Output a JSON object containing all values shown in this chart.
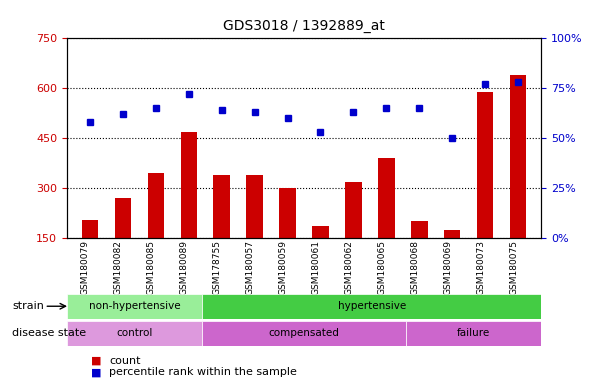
{
  "title": "GDS3018 / 1392889_at",
  "samples": [
    "GSM180079",
    "GSM180082",
    "GSM180085",
    "GSM180089",
    "GSM178755",
    "GSM180057",
    "GSM180059",
    "GSM180061",
    "GSM180062",
    "GSM180065",
    "GSM180068",
    "GSM180069",
    "GSM180073",
    "GSM180075"
  ],
  "counts": [
    205,
    270,
    345,
    470,
    340,
    340,
    300,
    185,
    320,
    390,
    200,
    175,
    590,
    640
  ],
  "percentiles": [
    58,
    62,
    65,
    72,
    64,
    63,
    60,
    53,
    63,
    65,
    65,
    50,
    77,
    78
  ],
  "ylim_left": [
    150,
    750
  ],
  "ylim_right": [
    0,
    100
  ],
  "yticks_left": [
    150,
    300,
    450,
    600,
    750
  ],
  "yticks_right": [
    0,
    25,
    50,
    75,
    100
  ],
  "ytick_labels_right": [
    "0%",
    "25%",
    "50%",
    "75%",
    "100%"
  ],
  "bar_color": "#cc0000",
  "marker_color": "#0000cc",
  "background_color": "#ffffff",
  "plot_bg_color": "#ffffff",
  "tick_bg_color": "#cccccc",
  "strain_groups": [
    {
      "label": "non-hypertensive",
      "start": 0,
      "end": 4,
      "color": "#99ee99"
    },
    {
      "label": "hypertensive",
      "start": 4,
      "end": 14,
      "color": "#44cc44"
    }
  ],
  "disease_groups": [
    {
      "label": "control",
      "start": 0,
      "end": 4,
      "color": "#dd99dd"
    },
    {
      "label": "compensated",
      "start": 4,
      "end": 10,
      "color": "#cc66cc"
    },
    {
      "label": "failure",
      "start": 10,
      "end": 14,
      "color": "#cc66cc"
    }
  ],
  "legend_count_label": "count",
  "legend_percentile_label": "percentile rank within the sample",
  "strain_label": "strain",
  "disease_label": "disease state"
}
